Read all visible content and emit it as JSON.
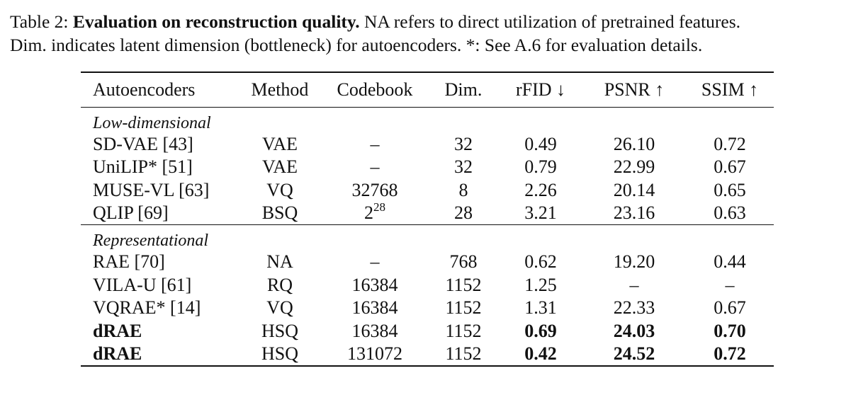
{
  "caption": {
    "label": "Table 2:",
    "title": "Evaluation on reconstruction quality.",
    "line1_rest": "NA refers to direct utilization of pretrained features.",
    "line2": "Dim. indicates latent dimension (bottleneck) for autoencoders. *: See A.6 for evaluation details."
  },
  "table": {
    "headers": [
      "Autoencoders",
      "Method",
      "Codebook",
      "Dim.",
      "rFID ↓",
      "PSNR ↑",
      "SSIM ↑"
    ],
    "groups": [
      {
        "name": "Low-dimensional",
        "rows": [
          {
            "cells": [
              "SD-VAE [43]",
              "VAE",
              "–",
              "32",
              "0.49",
              "26.10",
              "0.72"
            ],
            "bold": []
          },
          {
            "cells": [
              "UniLIP* [51]",
              "VAE",
              "–",
              "32",
              "0.79",
              "22.99",
              "0.67"
            ],
            "bold": []
          },
          {
            "cells": [
              "MUSE-VL [63]",
              "VQ",
              "32768",
              "8",
              "2.26",
              "20.14",
              "0.65"
            ],
            "bold": []
          },
          {
            "cells": [
              "QLIP [69]",
              "BSQ",
              "2^28",
              "28",
              "3.21",
              "23.16",
              "0.63"
            ],
            "bold": [],
            "codebook_base": "2",
            "codebook_exp": "28"
          }
        ]
      },
      {
        "name": "Representational",
        "rows": [
          {
            "cells": [
              "RAE [70]",
              "NA",
              "–",
              "768",
              "0.62",
              "19.20",
              "0.44"
            ],
            "bold": []
          },
          {
            "cells": [
              "VILA-U [61]",
              "RQ",
              "16384",
              "1152",
              "1.25",
              "–",
              "–"
            ],
            "bold": []
          },
          {
            "cells": [
              "VQRAE* [14]",
              "VQ",
              "16384",
              "1152",
              "1.31",
              "22.33",
              "0.67"
            ],
            "bold": []
          },
          {
            "cells": [
              "dRAE",
              "HSQ",
              "16384",
              "1152",
              "0.69",
              "24.03",
              "0.70"
            ],
            "bold": [
              0,
              4,
              5,
              6
            ]
          },
          {
            "cells": [
              "dRAE",
              "HSQ",
              "131072",
              "1152",
              "0.42",
              "24.52",
              "0.72"
            ],
            "bold": [
              0,
              4,
              5,
              6
            ]
          }
        ]
      }
    ]
  }
}
